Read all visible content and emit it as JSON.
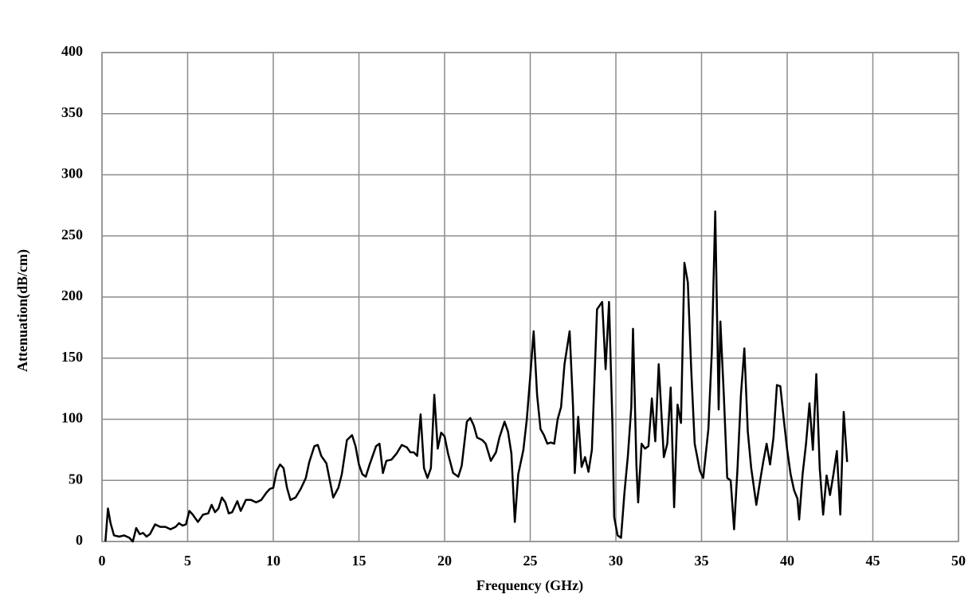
{
  "chart_data": {
    "type": "line",
    "xlabel": "Frequency (GHz)",
    "ylabel": "Attenuation(dB/cm)",
    "color": "#000000",
    "grid": true,
    "xlim": [
      0,
      50
    ],
    "xticks": [
      0,
      5,
      10,
      15,
      20,
      25,
      30,
      35,
      40,
      45,
      50
    ],
    "ylim": [
      0,
      400
    ],
    "yticks": [
      0,
      50,
      100,
      150,
      200,
      250,
      300,
      350,
      400
    ],
    "x": [
      0.2,
      0.35,
      0.5,
      0.7,
      1.0,
      1.3,
      1.6,
      1.8,
      2.0,
      2.2,
      2.4,
      2.6,
      2.8,
      3.1,
      3.4,
      3.7,
      4.0,
      4.3,
      4.5,
      4.7,
      4.9,
      5.1,
      5.3,
      5.6,
      5.9,
      6.2,
      6.4,
      6.6,
      6.8,
      7.0,
      7.2,
      7.4,
      7.6,
      7.9,
      8.1,
      8.4,
      8.7,
      9.0,
      9.3,
      9.6,
      9.8,
      10.0,
      10.2,
      10.4,
      10.6,
      10.8,
      11.0,
      11.3,
      11.6,
      11.9,
      12.1,
      12.4,
      12.6,
      12.8,
      13.1,
      13.3,
      13.5,
      13.8,
      14.0,
      14.3,
      14.6,
      14.8,
      15.0,
      15.2,
      15.4,
      15.6,
      15.8,
      16.0,
      16.2,
      16.4,
      16.6,
      16.9,
      17.2,
      17.5,
      17.8,
      18.0,
      18.2,
      18.4,
      18.6,
      18.8,
      19.0,
      19.2,
      19.4,
      19.6,
      19.8,
      20.0,
      20.2,
      20.5,
      20.8,
      21.0,
      21.3,
      21.5,
      21.7,
      21.9,
      22.2,
      22.4,
      22.7,
      23.0,
      23.2,
      23.5,
      23.7,
      23.9,
      24.1,
      24.3,
      24.6,
      24.8,
      25.0,
      25.2,
      25.4,
      25.6,
      25.8,
      26.0,
      26.2,
      26.4,
      26.6,
      26.8,
      27.0,
      27.3,
      27.5,
      27.6,
      27.8,
      28.0,
      28.2,
      28.4,
      28.6,
      28.9,
      29.2,
      29.4,
      29.6,
      29.8,
      29.9,
      30.1,
      30.3,
      30.5,
      30.7,
      30.9,
      31.0,
      31.2,
      31.3,
      31.5,
      31.7,
      31.9,
      32.1,
      32.3,
      32.5,
      32.8,
      33.0,
      33.2,
      33.4,
      33.6,
      33.8,
      34.0,
      34.2,
      34.4,
      34.6,
      34.9,
      35.1,
      35.4,
      35.6,
      35.8,
      36.0,
      36.1,
      36.3,
      36.5,
      36.7,
      36.9,
      37.1,
      37.3,
      37.5,
      37.7,
      37.9,
      38.2,
      38.4,
      38.6,
      38.8,
      39.0,
      39.2,
      39.4,
      39.6,
      39.8,
      40.0,
      40.2,
      40.4,
      40.6,
      40.7,
      40.9,
      41.1,
      41.3,
      41.5,
      41.7,
      41.9,
      42.1,
      42.3,
      42.5,
      42.7,
      42.9,
      43.1,
      43.3,
      43.5
    ],
    "values": [
      0,
      27,
      15,
      5,
      4,
      5,
      3,
      0,
      11,
      6,
      7,
      4,
      6,
      14,
      12,
      12,
      10,
      12,
      15,
      13,
      14,
      25,
      22,
      16,
      22,
      23,
      30,
      24,
      27,
      36,
      32,
      23,
      24,
      33,
      25,
      34,
      34,
      32,
      34,
      40,
      43,
      44,
      58,
      63,
      60,
      44,
      34,
      36,
      43,
      52,
      65,
      78,
      79,
      70,
      64,
      50,
      36,
      44,
      55,
      83,
      87,
      78,
      63,
      55,
      53,
      62,
      70,
      78,
      80,
      56,
      66,
      67,
      72,
      79,
      77,
      73,
      73,
      70,
      104,
      60,
      52,
      60,
      120,
      76,
      89,
      86,
      72,
      56,
      53,
      62,
      98,
      101,
      95,
      85,
      83,
      80,
      66,
      73,
      85,
      98,
      90,
      72,
      16,
      55,
      75,
      100,
      135,
      172,
      120,
      92,
      87,
      80,
      81,
      80,
      100,
      110,
      145,
      172,
      110,
      56,
      102,
      61,
      69,
      57,
      75,
      190,
      196,
      141,
      196,
      95,
      20,
      5,
      3,
      40,
      70,
      110,
      174,
      62,
      32,
      80,
      76,
      78,
      117,
      82,
      145,
      69,
      80,
      126,
      28,
      112,
      97,
      228,
      212,
      140,
      80,
      58,
      52,
      92,
      155,
      270,
      108,
      180,
      120,
      52,
      50,
      10,
      60,
      120,
      158,
      90,
      60,
      30,
      48,
      65,
      80,
      63,
      85,
      128,
      127,
      100,
      75,
      55,
      42,
      35,
      18,
      55,
      80,
      113,
      75,
      137,
      60,
      22,
      54,
      38,
      55,
      74,
      22,
      106,
      65
    ]
  }
}
